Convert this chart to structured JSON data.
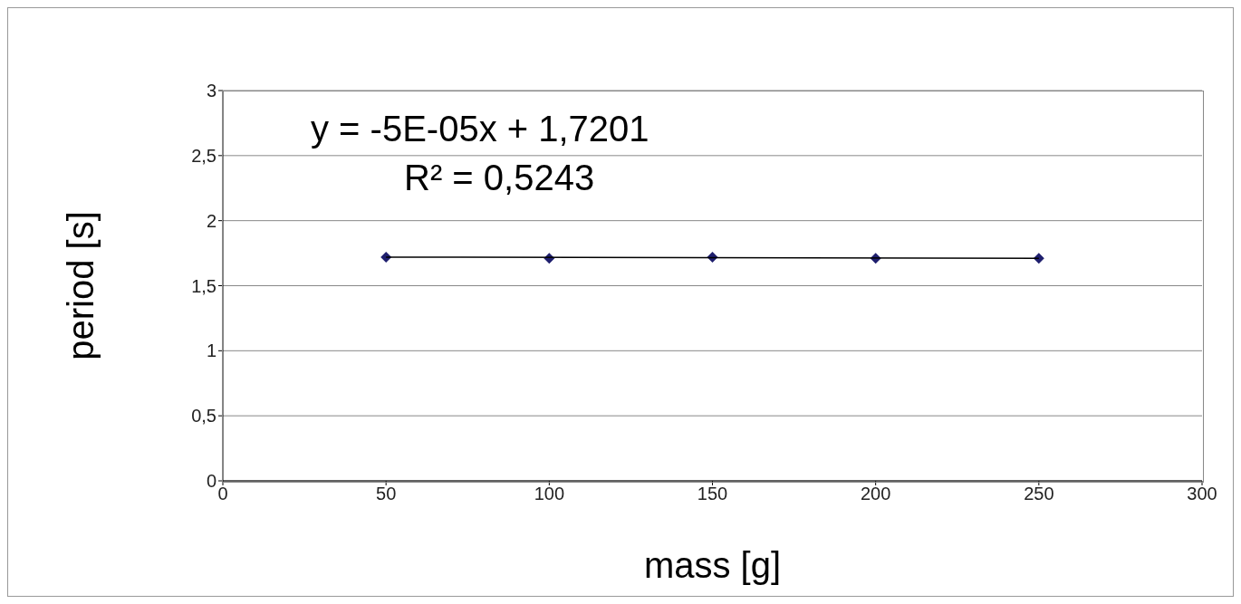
{
  "chart_data": {
    "type": "scatter",
    "xlabel": "mass [g]",
    "ylabel": "period [s]",
    "annotations": [
      "y = -5E-05x + 1,7201",
      "R² = 0,5243"
    ],
    "x": [
      50,
      100,
      150,
      200,
      250
    ],
    "series": [
      {
        "color": "#1f1f6e",
        "marker": "diamond",
        "values": [
          1.72,
          1.71,
          1.72,
          1.71,
          1.71
        ]
      },
      {
        "type": "line",
        "color": "#000000",
        "marker": "none",
        "x": [
          50,
          250
        ],
        "values": [
          1.72,
          1.71
        ]
      }
    ],
    "xlim": [
      0,
      300
    ],
    "xticks": [
      0,
      50,
      100,
      150,
      200,
      250,
      300
    ],
    "ylim": [
      0,
      3
    ],
    "yticks": [
      0,
      {
        "value": 0.5,
        "label": "0,5"
      },
      1,
      {
        "value": 1.5,
        "label": "1,5"
      },
      2,
      {
        "value": 2.5,
        "label": "2,5"
      },
      3
    ],
    "grid": "y"
  }
}
